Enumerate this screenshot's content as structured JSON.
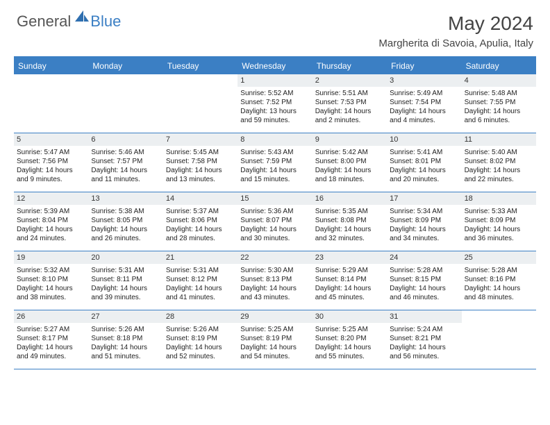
{
  "logo": {
    "general": "General",
    "blue": "Blue"
  },
  "title": "May 2024",
  "location": "Margherita di Savoia, Apulia, Italy",
  "colors": {
    "header_bg": "#3b7fc4",
    "daynum_bg": "#eceff1",
    "text": "#222222",
    "title_text": "#444444"
  },
  "weekdays": [
    "Sunday",
    "Monday",
    "Tuesday",
    "Wednesday",
    "Thursday",
    "Friday",
    "Saturday"
  ],
  "weeks": [
    [
      null,
      null,
      null,
      {
        "n": "1",
        "sr": "5:52 AM",
        "ss": "7:52 PM",
        "dl": "13 hours and 59 minutes."
      },
      {
        "n": "2",
        "sr": "5:51 AM",
        "ss": "7:53 PM",
        "dl": "14 hours and 2 minutes."
      },
      {
        "n": "3",
        "sr": "5:49 AM",
        "ss": "7:54 PM",
        "dl": "14 hours and 4 minutes."
      },
      {
        "n": "4",
        "sr": "5:48 AM",
        "ss": "7:55 PM",
        "dl": "14 hours and 6 minutes."
      }
    ],
    [
      {
        "n": "5",
        "sr": "5:47 AM",
        "ss": "7:56 PM",
        "dl": "14 hours and 9 minutes."
      },
      {
        "n": "6",
        "sr": "5:46 AM",
        "ss": "7:57 PM",
        "dl": "14 hours and 11 minutes."
      },
      {
        "n": "7",
        "sr": "5:45 AM",
        "ss": "7:58 PM",
        "dl": "14 hours and 13 minutes."
      },
      {
        "n": "8",
        "sr": "5:43 AM",
        "ss": "7:59 PM",
        "dl": "14 hours and 15 minutes."
      },
      {
        "n": "9",
        "sr": "5:42 AM",
        "ss": "8:00 PM",
        "dl": "14 hours and 18 minutes."
      },
      {
        "n": "10",
        "sr": "5:41 AM",
        "ss": "8:01 PM",
        "dl": "14 hours and 20 minutes."
      },
      {
        "n": "11",
        "sr": "5:40 AM",
        "ss": "8:02 PM",
        "dl": "14 hours and 22 minutes."
      }
    ],
    [
      {
        "n": "12",
        "sr": "5:39 AM",
        "ss": "8:04 PM",
        "dl": "14 hours and 24 minutes."
      },
      {
        "n": "13",
        "sr": "5:38 AM",
        "ss": "8:05 PM",
        "dl": "14 hours and 26 minutes."
      },
      {
        "n": "14",
        "sr": "5:37 AM",
        "ss": "8:06 PM",
        "dl": "14 hours and 28 minutes."
      },
      {
        "n": "15",
        "sr": "5:36 AM",
        "ss": "8:07 PM",
        "dl": "14 hours and 30 minutes."
      },
      {
        "n": "16",
        "sr": "5:35 AM",
        "ss": "8:08 PM",
        "dl": "14 hours and 32 minutes."
      },
      {
        "n": "17",
        "sr": "5:34 AM",
        "ss": "8:09 PM",
        "dl": "14 hours and 34 minutes."
      },
      {
        "n": "18",
        "sr": "5:33 AM",
        "ss": "8:09 PM",
        "dl": "14 hours and 36 minutes."
      }
    ],
    [
      {
        "n": "19",
        "sr": "5:32 AM",
        "ss": "8:10 PM",
        "dl": "14 hours and 38 minutes."
      },
      {
        "n": "20",
        "sr": "5:31 AM",
        "ss": "8:11 PM",
        "dl": "14 hours and 39 minutes."
      },
      {
        "n": "21",
        "sr": "5:31 AM",
        "ss": "8:12 PM",
        "dl": "14 hours and 41 minutes."
      },
      {
        "n": "22",
        "sr": "5:30 AM",
        "ss": "8:13 PM",
        "dl": "14 hours and 43 minutes."
      },
      {
        "n": "23",
        "sr": "5:29 AM",
        "ss": "8:14 PM",
        "dl": "14 hours and 45 minutes."
      },
      {
        "n": "24",
        "sr": "5:28 AM",
        "ss": "8:15 PM",
        "dl": "14 hours and 46 minutes."
      },
      {
        "n": "25",
        "sr": "5:28 AM",
        "ss": "8:16 PM",
        "dl": "14 hours and 48 minutes."
      }
    ],
    [
      {
        "n": "26",
        "sr": "5:27 AM",
        "ss": "8:17 PM",
        "dl": "14 hours and 49 minutes."
      },
      {
        "n": "27",
        "sr": "5:26 AM",
        "ss": "8:18 PM",
        "dl": "14 hours and 51 minutes."
      },
      {
        "n": "28",
        "sr": "5:26 AM",
        "ss": "8:19 PM",
        "dl": "14 hours and 52 minutes."
      },
      {
        "n": "29",
        "sr": "5:25 AM",
        "ss": "8:19 PM",
        "dl": "14 hours and 54 minutes."
      },
      {
        "n": "30",
        "sr": "5:25 AM",
        "ss": "8:20 PM",
        "dl": "14 hours and 55 minutes."
      },
      {
        "n": "31",
        "sr": "5:24 AM",
        "ss": "8:21 PM",
        "dl": "14 hours and 56 minutes."
      },
      null
    ]
  ],
  "labels": {
    "sunrise": "Sunrise:",
    "sunset": "Sunset:",
    "daylight": "Daylight:"
  }
}
